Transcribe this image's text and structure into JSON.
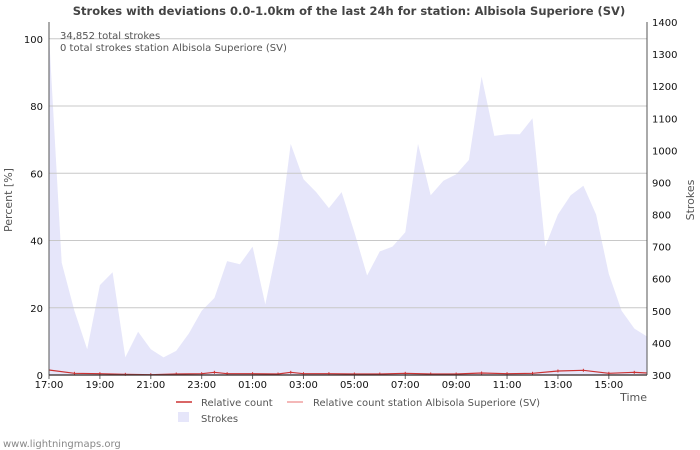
{
  "chart_data": {
    "type": "area",
    "title": "Strokes with deviations 0.0-1.0km of the last 24h for station: Albisola Superiore (SV)",
    "xlabel": "Time",
    "ylabel_left": "Percent   [%]",
    "ylabel_right": "Strokes",
    "left_ticks": [
      "0",
      "20",
      "40",
      "60",
      "80",
      "100"
    ],
    "left_ylim": [
      0,
      105
    ],
    "right_ticks": [
      "300",
      "400",
      "500",
      "600",
      "700",
      "800",
      "900",
      "1000",
      "1100",
      "1200",
      "1300",
      "1400"
    ],
    "right_ylim": [
      300,
      1400
    ],
    "x_tick_labels": [
      "17:00",
      "19:00",
      "21:00",
      "23:00",
      "01:00",
      "03:00",
      "05:00",
      "07:00",
      "09:00",
      "11:00",
      "13:00",
      "15:00"
    ],
    "x_range_hours": [
      0,
      23.5
    ],
    "annotations": [
      "34,852 total strokes",
      "0 total strokes station Albisola Superiore (SV)"
    ],
    "legend": [
      "Relative count",
      "Relative count station Albisola Superiore (SV)",
      "Strokes"
    ],
    "series": [
      {
        "name": "Strokes",
        "axis": "right",
        "color": "#e6e6fa",
        "x": [
          0,
          0.5,
          1,
          1.5,
          2,
          2.5,
          3,
          3.5,
          4,
          4.5,
          5,
          5.5,
          6,
          6.5,
          7,
          7.5,
          8,
          8.5,
          9,
          9.5,
          10,
          10.5,
          11,
          11.5,
          12,
          12.5,
          13,
          13.5,
          14,
          14.5,
          15,
          15.5,
          16,
          16.5,
          17,
          17.5,
          18,
          18.5,
          19,
          19.5,
          20,
          20.5,
          21,
          21.5,
          22,
          22.5,
          23,
          23.5
        ],
        "values": [
          1360,
          650,
          500,
          380,
          580,
          620,
          355,
          435,
          380,
          355,
          375,
          430,
          500,
          540,
          655,
          645,
          700,
          520,
          710,
          1020,
          910,
          870,
          820,
          870,
          745,
          610,
          685,
          700,
          745,
          1020,
          860,
          905,
          925,
          970,
          1230,
          1045,
          1050,
          1050,
          1100,
          700,
          800,
          860,
          890,
          800,
          615,
          500,
          445,
          420
        ]
      },
      {
        "name": "Relative count",
        "axis": "left",
        "color": "#cc3333",
        "x": [
          0,
          1,
          2,
          3,
          4,
          5,
          6,
          6.5,
          7,
          8,
          9,
          9.5,
          10,
          11,
          12,
          13,
          14,
          15,
          16,
          17,
          18,
          19,
          20,
          21,
          22,
          23,
          23.5
        ],
        "values": [
          1.5,
          0.5,
          0.4,
          0.2,
          0.1,
          0.3,
          0.4,
          0.8,
          0.4,
          0.4,
          0.3,
          0.8,
          0.4,
          0.4,
          0.3,
          0.3,
          0.5,
          0.3,
          0.3,
          0.6,
          0.4,
          0.5,
          1.2,
          1.4,
          0.5,
          0.8,
          0.6
        ]
      },
      {
        "name": "Relative count station Albisola Superiore (SV)",
        "axis": "left",
        "color": "#f0a0a0",
        "x": [
          0,
          23.5
        ],
        "values": [
          0,
          0
        ]
      }
    ]
  },
  "colors": {
    "strokes_fill": "#e6e6fa",
    "relative": "#cc3333",
    "relative_station": "#f0a0a0",
    "grid": "#c8c8c8"
  },
  "footer": "www.lightningmaps.org"
}
